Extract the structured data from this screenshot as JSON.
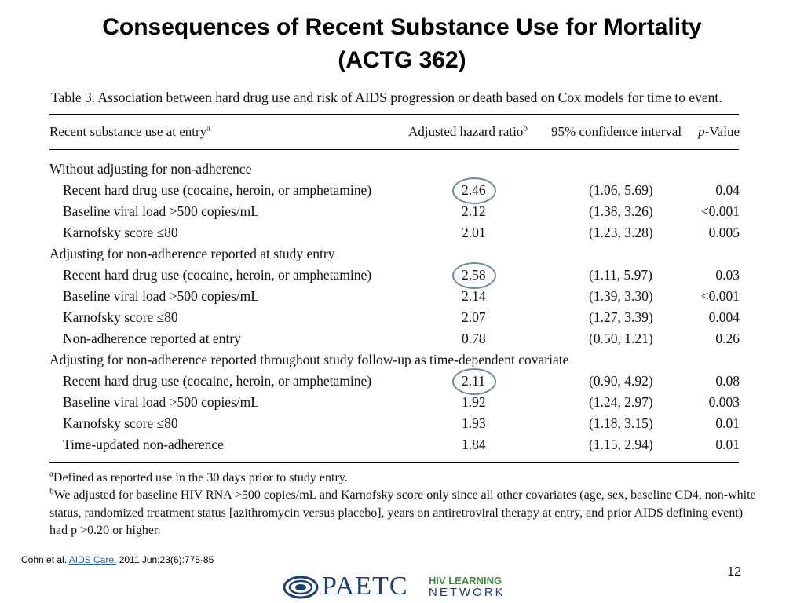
{
  "slide": {
    "title_line1": "Consequences of Recent Substance Use for Mortality",
    "title_line2": "(ACTG 362)",
    "page_number": "12"
  },
  "table": {
    "caption": "Table 3.  Association between hard drug use and risk of AIDS progression or death based on Cox models for time to event.",
    "headers": {
      "col1": "Recent substance use at entry",
      "col1_sup": "a",
      "col2": "Adjusted hazard ratio",
      "col2_sup": "b",
      "col3": "95% confidence interval",
      "col4_italic": "p",
      "col4": "-Value"
    },
    "rows": [
      {
        "label": "Without adjusting for non-adherence",
        "section": true
      },
      {
        "label": "Recent hard drug use (cocaine, heroin, or amphetamine)",
        "hr": "2.46",
        "ci": "(1.06, 5.69)",
        "p": "0.04",
        "circled": true
      },
      {
        "label": "Baseline viral load  >500 copies/mL",
        "hr": "2.12",
        "ci": "(1.38, 3.26)",
        "p": "<0.001"
      },
      {
        "label": "Karnofsky score  ≤80",
        "hr": "2.01",
        "ci": "(1.23, 3.28)",
        "p": "0.005"
      },
      {
        "label": "Adjusting for non-adherence reported at study entry",
        "section": true
      },
      {
        "label": "Recent hard drug use (cocaine, heroin, or amphetamine)",
        "hr": "2.58",
        "ci": "(1.11, 5.97)",
        "p": "0.03",
        "circled": true
      },
      {
        "label": "Baseline viral load  >500 copies/mL",
        "hr": "2.14",
        "ci": "(1.39, 3.30)",
        "p": "<0.001"
      },
      {
        "label": "Karnofsky score  ≤80",
        "hr": "2.07",
        "ci": "(1.27, 3.39)",
        "p": "0.004"
      },
      {
        "label": "Non-adherence reported at entry",
        "hr": "0.78",
        "ci": "(0.50, 1.21)",
        "p": "0.26"
      },
      {
        "label": "Adjusting for non-adherence reported throughout study follow-up as time-dependent covariate",
        "section": true
      },
      {
        "label": "Recent hard drug use (cocaine, heroin, or amphetamine)",
        "hr": "2.11",
        "ci": "(0.90, 4.92)",
        "p": "0.08",
        "circled": true
      },
      {
        "label": "Baseline viral load  >500 copies/mL",
        "hr": "1.92",
        "ci": "(1.24, 2.97)",
        "p": "0.003"
      },
      {
        "label": "Karnofsky score  ≤80",
        "hr": "1.93",
        "ci": "(1.18, 3.15)",
        "p": "0.01"
      },
      {
        "label": "Time-updated non-adherence",
        "hr": "1.84",
        "ci": "(1.15, 2.94)",
        "p": "0.01"
      }
    ],
    "footnote_a_mark": "a",
    "footnote_a": "Defined as reported use in the 30 days prior to study entry.",
    "footnote_b_mark": "b",
    "footnote_b_line1": "We adjusted for baseline HIV RNA  >500 copies/mL and Karnofsky score only since all other covariates (age, sex, baseline CD4, non-white",
    "footnote_b_line2": "status, randomized treatment status [azithromycin versus placebo], years on antiretroviral therapy at entry, and prior AIDS defining event)",
    "footnote_b_line3": "had p >0.20 or higher."
  },
  "citation": {
    "prefix": "Cohn et al. ",
    "journal": "AIDS Care.",
    "suffix": " 2011 Jun;23(6):775-85"
  },
  "logo": {
    "main": "PAETC",
    "top": "HIV LEARNING",
    "bottom": "NETWORK",
    "accent_color": "#3e8f3e",
    "brand_color": "#1a3f7a"
  }
}
